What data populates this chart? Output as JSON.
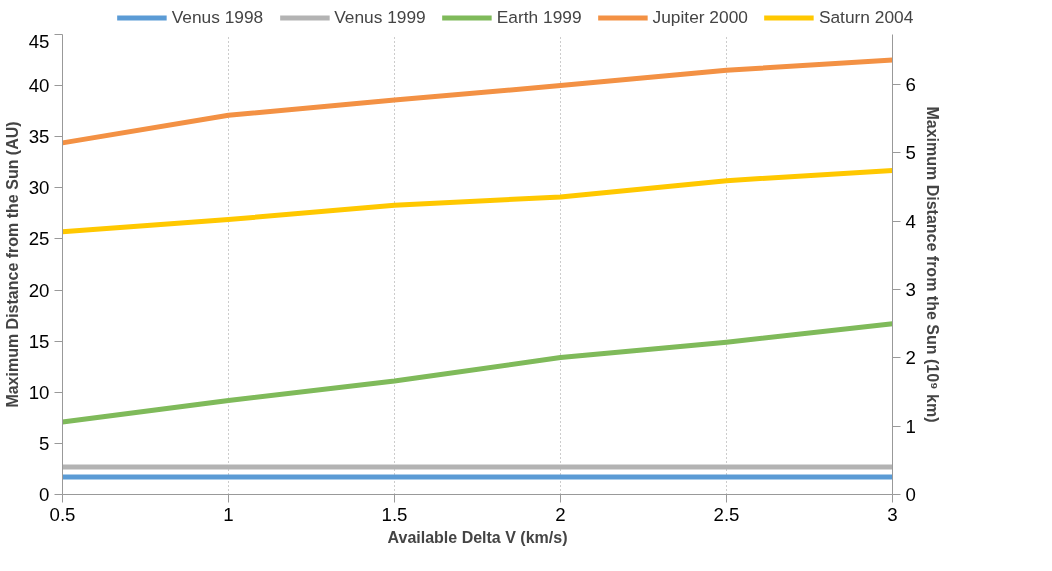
{
  "chart_data": {
    "type": "line",
    "xlabel": "Available Delta V (km/s)",
    "ylabel": "Maximum Distance from the Sun (AU)",
    "y2label": "Maximum Distance from the Sun (10⁹ km)",
    "x": [
      0.5,
      1,
      1.5,
      2,
      2.5,
      3
    ],
    "xlim": [
      0.5,
      3
    ],
    "xticks": [
      0.5,
      1,
      1.5,
      2,
      2.5,
      3
    ],
    "ylim": [
      0,
      45
    ],
    "yticks": [
      0,
      5,
      10,
      15,
      20,
      25,
      30,
      35,
      40,
      45
    ],
    "y2lim": [
      0,
      6.73
    ],
    "y2ticks": [
      0,
      1,
      2,
      3,
      4,
      5,
      6
    ],
    "grid": "x",
    "legend": "top",
    "line_style": "solid",
    "marker": "none",
    "series": [
      {
        "name": "Venus 1998",
        "color": "#5b9bd5",
        "values": [
          1.7,
          1.7,
          1.7,
          1.7,
          1.7,
          1.7
        ]
      },
      {
        "name": "Venus 1999",
        "color": "#b3b3b3",
        "values": [
          2.7,
          2.7,
          2.7,
          2.7,
          2.7,
          2.7
        ]
      },
      {
        "name": "Earth 1999",
        "color": "#7fba5a",
        "values": [
          7.1,
          9.2,
          11.1,
          13.4,
          14.9,
          16.7
        ]
      },
      {
        "name": "Jupiter 2000",
        "color": "#f39144",
        "values": [
          34.4,
          37.1,
          38.6,
          40.0,
          41.5,
          42.5
        ]
      },
      {
        "name": "Saturn 2004",
        "color": "#ffc800",
        "values": [
          25.7,
          26.9,
          28.3,
          29.1,
          30.7,
          31.7
        ]
      }
    ]
  }
}
